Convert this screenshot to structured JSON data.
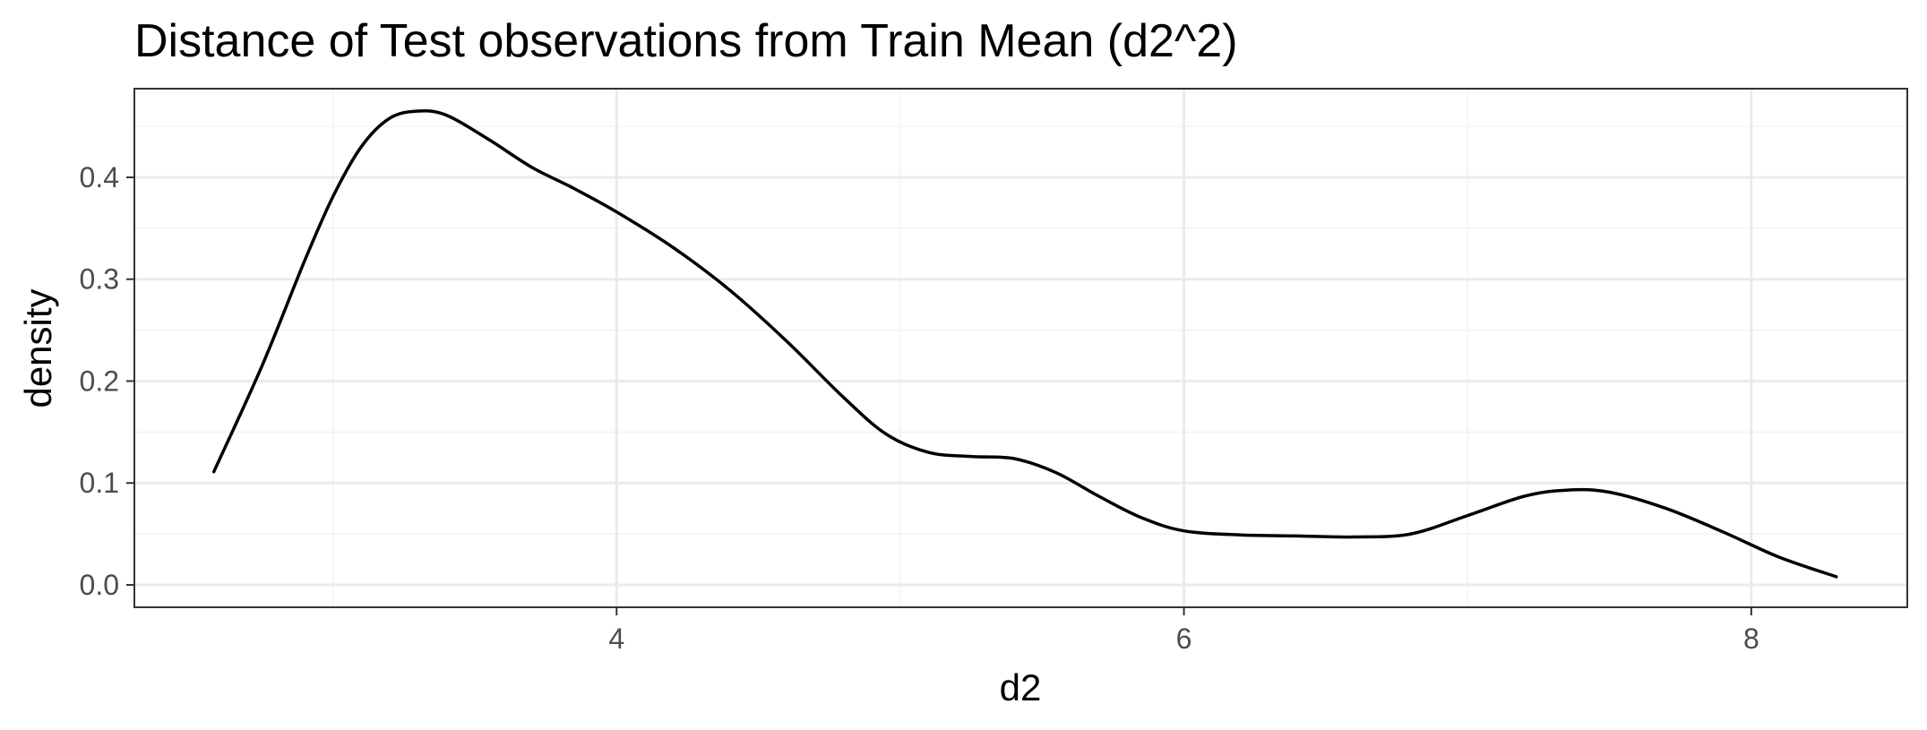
{
  "chart_data": {
    "type": "line",
    "title": "Distance of Test observations from Train Mean (d2^2)",
    "xlabel": "d2",
    "ylabel": "density",
    "xlim": [
      2.3,
      8.55
    ],
    "ylim": [
      -0.022,
      0.487
    ],
    "x_ticks": [
      4,
      6,
      8
    ],
    "x_tick_labels": [
      "4",
      "6",
      "8"
    ],
    "x_minor_ticks": [
      3,
      5,
      7
    ],
    "y_ticks": [
      0.0,
      0.1,
      0.2,
      0.3,
      0.4
    ],
    "y_tick_labels": [
      "0.0",
      "0.1",
      "0.2",
      "0.3",
      "0.4"
    ],
    "y_minor_ticks": [
      0.05,
      0.15,
      0.25,
      0.35,
      0.45
    ],
    "grid": true,
    "legend": "none",
    "series": [
      {
        "x": [
          2.58,
          2.75,
          2.9,
          3.0,
          3.1,
          3.2,
          3.3,
          3.4,
          3.55,
          3.7,
          3.85,
          4.0,
          4.2,
          4.4,
          4.6,
          4.8,
          4.95,
          5.1,
          5.25,
          5.4,
          5.55,
          5.7,
          5.85,
          6.0,
          6.2,
          6.4,
          6.6,
          6.8,
          7.0,
          7.2,
          7.35,
          7.5,
          7.7,
          7.9,
          8.1,
          8.3
        ],
        "y": [
          0.111,
          0.215,
          0.318,
          0.381,
          0.43,
          0.458,
          0.465,
          0.461,
          0.437,
          0.41,
          0.389,
          0.366,
          0.331,
          0.289,
          0.239,
          0.184,
          0.148,
          0.13,
          0.126,
          0.124,
          0.11,
          0.087,
          0.066,
          0.053,
          0.049,
          0.048,
          0.047,
          0.05,
          0.068,
          0.087,
          0.093,
          0.091,
          0.075,
          0.052,
          0.027,
          0.008
        ]
      }
    ]
  }
}
